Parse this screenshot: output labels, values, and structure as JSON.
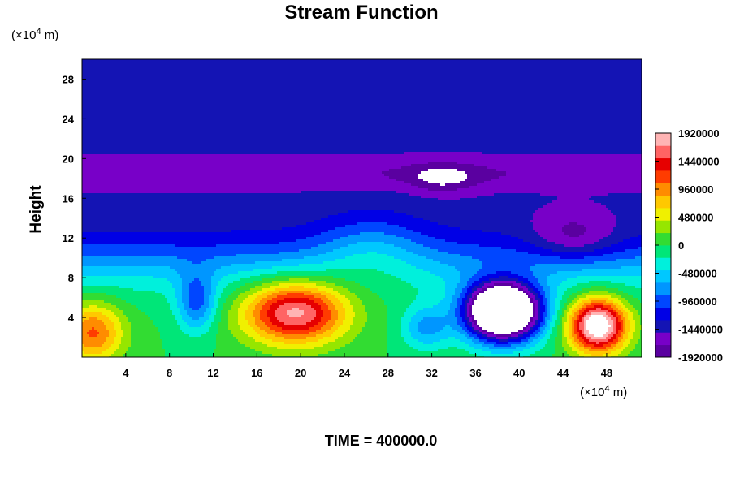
{
  "chart_data": {
    "type": "heatmap",
    "title": "Stream Function",
    "ylabel": "Height",
    "xlabel": "",
    "x_unit_prefix": "(×10",
    "x_unit_exp": "4",
    "x_unit_suffix": " m)",
    "y_unit_prefix": "(×10",
    "y_unit_exp": "4",
    "y_unit_suffix": " m)",
    "xlim": [
      0,
      51.2
    ],
    "ylim": [
      0,
      30
    ],
    "x_ticks": [
      4,
      8,
      12,
      16,
      20,
      24,
      28,
      32,
      36,
      40,
      44,
      48
    ],
    "y_ticks": [
      4,
      8,
      12,
      16,
      20,
      24,
      28
    ],
    "colorbar": {
      "min": -1920000,
      "max": 1920000,
      "labels": [
        1920000,
        1440000,
        960000,
        480000,
        0,
        -480000,
        -960000,
        -1440000,
        -1920000
      ],
      "colors": [
        "#5a00a0",
        "#7800c8",
        "#1414b4",
        "#0000e6",
        "#0046ff",
        "#0096ff",
        "#00c8ff",
        "#00f0dc",
        "#00e678",
        "#32dc32",
        "#96e600",
        "#f0f000",
        "#ffc800",
        "#ff8c00",
        "#ff3c00",
        "#e60000",
        "#ff6464",
        "#ffb4b4"
      ],
      "above_color": "#ffffff",
      "below_color": "#ffffff"
    },
    "features": [
      {
        "kind": "positive_max",
        "x": 19.5,
        "y": 4.5,
        "value": 2100000
      },
      {
        "kind": "negative_min",
        "x": 38.5,
        "y": 4.6,
        "value": -2050000
      },
      {
        "kind": "positive_max",
        "x": 47.0,
        "y": 3.0,
        "value": 1800000
      }
    ]
  },
  "footer": "TIME = 400000.0"
}
